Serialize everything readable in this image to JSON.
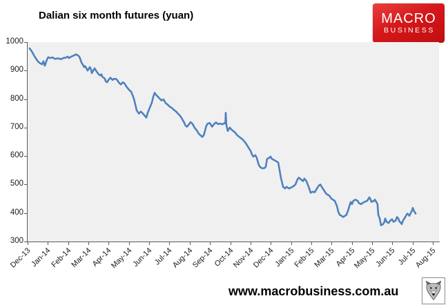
{
  "header": {
    "title": "Dalian six month futures (yuan)"
  },
  "logo": {
    "line1": "MACRO",
    "line2": "BUSINESS",
    "bg_color": "#d5181b",
    "text_color": "#ffffff"
  },
  "footer": {
    "url": "www.macrobusiness.com.au"
  },
  "chart_data": {
    "type": "line",
    "title": "Dalian six month futures (yuan)",
    "xlabel": "",
    "ylabel": "",
    "ylim": [
      300,
      1000
    ],
    "y_ticks": [
      1000,
      900,
      800,
      700,
      600,
      500,
      400,
      300
    ],
    "x_tick_labels": [
      "Dec-13",
      "Jan-14",
      "Feb-14",
      "Mar-14",
      "Apr-14",
      "May-14",
      "Jun-14",
      "Jul-14",
      "Aug-14",
      "Sep-14",
      "Oct-14",
      "Nov-14",
      "Dec-14",
      "Jan-15",
      "Feb-15",
      "Mar-15",
      "Apr-15",
      "May-15",
      "Jun-15",
      "Jul-15",
      "Aug-15"
    ],
    "grid": false,
    "legend": "none",
    "line_color": "#4F81BD",
    "plot_bg": "#f0f0f0",
    "series": [
      {
        "name": "Dalian six month futures (yuan)",
        "x_unit": "months since Dec-2013 tick",
        "x": [
          0.1,
          0.2,
          0.34,
          0.51,
          0.61,
          0.72,
          0.78,
          0.85,
          0.95,
          1.02,
          1.12,
          1.23,
          1.36,
          1.5,
          1.64,
          1.77,
          1.87,
          1.98,
          2.04,
          2.15,
          2.28,
          2.39,
          2.49,
          2.56,
          2.66,
          2.73,
          2.79,
          2.83,
          2.9,
          2.96,
          3.0,
          3.07,
          3.13,
          3.17,
          3.24,
          3.31,
          3.34,
          3.41,
          3.51,
          3.58,
          3.65,
          3.68,
          3.75,
          3.82,
          3.85,
          3.92,
          3.99,
          4.09,
          4.19,
          4.26,
          4.36,
          4.43,
          4.5,
          4.6,
          4.7,
          4.77,
          4.87,
          4.94,
          5.04,
          5.11,
          5.18,
          5.25,
          5.32,
          5.38,
          5.49,
          5.59,
          5.69,
          5.79,
          5.86,
          5.93,
          6.03,
          6.13,
          6.2,
          6.27,
          6.34,
          6.41,
          6.51,
          6.61,
          6.71,
          6.81,
          6.92,
          7.02,
          7.12,
          7.22,
          7.32,
          7.43,
          7.53,
          7.63,
          7.73,
          7.8,
          7.87,
          7.97,
          8.04,
          8.14,
          8.24,
          8.35,
          8.45,
          8.55,
          8.62,
          8.69,
          8.76,
          8.82,
          8.89,
          8.99,
          9.1,
          9.2,
          9.3,
          9.4,
          9.51,
          9.61,
          9.71,
          9.76,
          9.78,
          9.81,
          9.88,
          9.98,
          10.08,
          10.22,
          10.36,
          10.49,
          10.63,
          10.77,
          10.9,
          11.01,
          11.07,
          11.14,
          11.24,
          11.31,
          11.41,
          11.48,
          11.58,
          11.69,
          11.75,
          11.82,
          11.93,
          11.99,
          12.06,
          12.16,
          12.27,
          12.37,
          12.44,
          12.5,
          12.61,
          12.71,
          12.78,
          12.91,
          13.02,
          13.12,
          13.22,
          13.32,
          13.39,
          13.49,
          13.59,
          13.66,
          13.76,
          13.87,
          13.97,
          14.07,
          14.17,
          14.28,
          14.38,
          14.45,
          14.55,
          14.65,
          14.75,
          14.89,
          14.99,
          15.06,
          15.16,
          15.27,
          15.33,
          15.4,
          15.5,
          15.57,
          15.67,
          15.74,
          15.84,
          15.91,
          15.95,
          16.01,
          16.08,
          16.18,
          16.29,
          16.35,
          16.46,
          16.52,
          16.63,
          16.76,
          16.87,
          16.93,
          16.97,
          17.1,
          17.14,
          17.21,
          17.27,
          17.31,
          17.38,
          17.44,
          17.55,
          17.61,
          17.65,
          17.72,
          17.82,
          17.89,
          17.99,
          18.06,
          18.16,
          18.23,
          18.3,
          18.33,
          18.47,
          18.5,
          18.57,
          18.64,
          18.67,
          18.74,
          18.81,
          18.84,
          18.98,
          19.01,
          19.08,
          19.15
        ],
        "values": [
          978,
          968,
          950,
          932,
          926,
          922,
          933,
          917,
          938,
          947,
          944,
          946,
          941,
          943,
          940,
          944,
          945,
          949,
          944,
          949,
          953,
          957,
          953,
          948,
          928,
          920,
          912,
          916,
          908,
          900,
          904,
          912,
          904,
          891,
          900,
          908,
          904,
          896,
          887,
          883,
          887,
          879,
          875,
          871,
          863,
          859,
          867,
          875,
          867,
          871,
          871,
          866,
          858,
          851,
          859,
          856,
          845,
          838,
          830,
          826,
          814,
          800,
          780,
          761,
          749,
          756,
          749,
          741,
          735,
          752,
          770,
          787,
          808,
          822,
          815,
          810,
          802,
          795,
          799,
          786,
          780,
          773,
          769,
          762,
          757,
          748,
          741,
          730,
          717,
          706,
          703,
          712,
          719,
          713,
          700,
          690,
          678,
          672,
          667,
          673,
          690,
          706,
          714,
          716,
          703,
          712,
          718,
          712,
          714,
          711,
          716,
          714,
          752,
          710,
          688,
          700,
          692,
          684,
          672,
          665,
          657,
          645,
          630,
          618,
          606,
          598,
          603,
          594,
          569,
          561,
          557,
          558,
          562,
          590,
          594,
          598,
          590,
          586,
          582,
          577,
          550,
          524,
          492,
          486,
          492,
          486,
          490,
          494,
          500,
          518,
          524,
          518,
          512,
          521,
          512,
          492,
          471,
          475,
          473,
          486,
          497,
          500,
          488,
          477,
          467,
          461,
          451,
          447,
          443,
          424,
          406,
          394,
          390,
          386,
          390,
          394,
          414,
          431,
          439,
          431,
          443,
          447,
          443,
          435,
          431,
          435,
          439,
          443,
          455,
          447,
          439,
          443,
          447,
          439,
          431,
          394,
          381,
          357,
          361,
          369,
          381,
          369,
          365,
          373,
          378,
          369,
          373,
          386,
          381,
          373,
          361,
          369,
          378,
          386,
          390,
          398,
          394,
          390,
          410,
          418,
          406,
          398
        ]
      }
    ]
  }
}
